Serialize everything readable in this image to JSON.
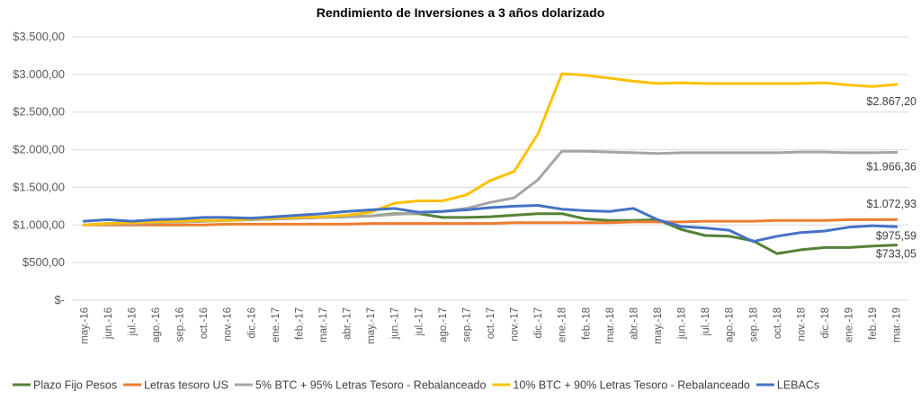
{
  "chart_data": {
    "type": "line",
    "title": "Rendimiento de Inversiones a 3 años dolarizado",
    "xlabel": "",
    "ylabel": "",
    "ylim": [
      0,
      3500
    ],
    "y_ticks": [
      "$-",
      "$500,00",
      "$1.000,00",
      "$1.500,00",
      "$2.000,00",
      "$2.500,00",
      "$3.000,00",
      "$3.500,00"
    ],
    "grid": true,
    "legend_position": "bottom",
    "categories": [
      "may.-16",
      "jun.-16",
      "jul.-16",
      "ago.-16",
      "sep.-16",
      "oct.-16",
      "nov.-16",
      "dic.-16",
      "ene.-17",
      "feb.-17",
      "mar.-17",
      "abr.-17",
      "may.-17",
      "jun.-17",
      "jul.-17",
      "ago.-17",
      "sep.-17",
      "oct.-17",
      "nov.-17",
      "dic.-17",
      "ene.-18",
      "feb.-18",
      "mar.-18",
      "abr.-18",
      "may.-18",
      "jun.-18",
      "jul.-18",
      "ago.-18",
      "sep.-18",
      "oct.-18",
      "nov.-18",
      "dic.-18",
      "ene.-19",
      "feb.-19",
      "mar.-19"
    ],
    "series": [
      {
        "name": "Plazo Fijo Pesos",
        "color": "#548235",
        "values": [
          1000,
          1020,
          1030,
          1040,
          1040,
          1050,
          1060,
          1070,
          1080,
          1090,
          1100,
          1110,
          1120,
          1150,
          1150,
          1100,
          1100,
          1110,
          1130,
          1150,
          1150,
          1080,
          1060,
          1060,
          1070,
          940,
          860,
          850,
          790,
          620,
          670,
          700,
          700,
          720,
          733.05
        ],
        "end_label": "$733,05"
      },
      {
        "name": "Letras tesoro US",
        "color": "#ed7d31",
        "values": [
          1000,
          1000,
          1000,
          1000,
          1000,
          1000,
          1010,
          1010,
          1010,
          1010,
          1010,
          1010,
          1020,
          1020,
          1020,
          1020,
          1020,
          1020,
          1030,
          1030,
          1030,
          1030,
          1030,
          1040,
          1040,
          1040,
          1050,
          1050,
          1050,
          1060,
          1060,
          1060,
          1070,
          1070,
          1072.93
        ],
        "end_label": "$1.072,93"
      },
      {
        "name": "5% BTC + 95% Letras Tesoro - Rebalanceado",
        "color": "#a5a5a5",
        "values": [
          1000,
          1010,
          1020,
          1030,
          1040,
          1050,
          1060,
          1070,
          1080,
          1090,
          1100,
          1110,
          1120,
          1140,
          1160,
          1180,
          1220,
          1300,
          1360,
          1600,
          1980,
          1980,
          1970,
          1960,
          1950,
          1960,
          1960,
          1960,
          1960,
          1960,
          1970,
          1970,
          1960,
          1960,
          1966.36
        ],
        "end_label": "$1.966,36"
      },
      {
        "name": "10% BTC + 90% Letras Tesoro - Rebalanceado",
        "color": "#ffc000",
        "values": [
          1000,
          1020,
          1030,
          1040,
          1050,
          1060,
          1060,
          1080,
          1090,
          1100,
          1110,
          1130,
          1170,
          1290,
          1320,
          1320,
          1400,
          1590,
          1710,
          2210,
          3010,
          2990,
          2950,
          2910,
          2880,
          2890,
          2880,
          2880,
          2880,
          2880,
          2880,
          2890,
          2860,
          2840,
          2867.2
        ],
        "end_label": "$2.867,20"
      },
      {
        "name": "LEBACs",
        "color": "#4472c4",
        "values": [
          1050,
          1070,
          1050,
          1070,
          1080,
          1100,
          1100,
          1090,
          1110,
          1130,
          1150,
          1180,
          1200,
          1220,
          1170,
          1180,
          1200,
          1230,
          1250,
          1260,
          1210,
          1190,
          1180,
          1220,
          1070,
          980,
          960,
          930,
          780,
          850,
          900,
          920,
          970,
          990,
          975.59
        ],
        "end_label": "$975,59"
      }
    ]
  }
}
